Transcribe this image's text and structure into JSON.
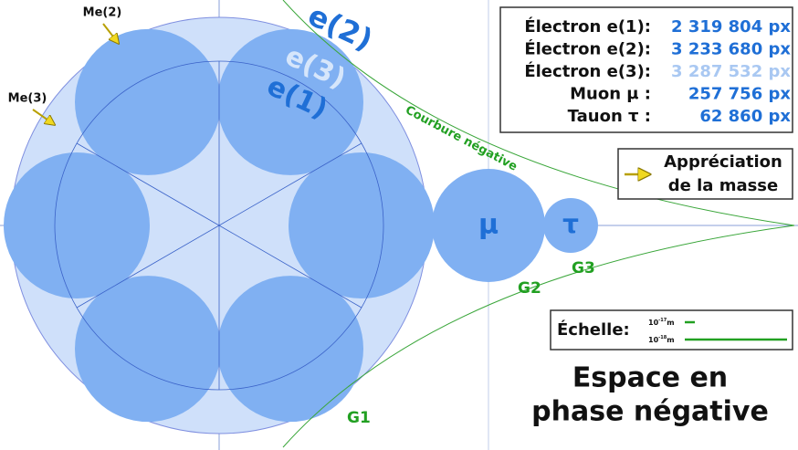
{
  "labels": {
    "me2": "Me(2)",
    "me3": "Me(3)",
    "e2": "e(2)",
    "e3": "e(3)",
    "e1": "e(1)",
    "curvature": "Courbure négative",
    "mu": "μ",
    "tau": "τ",
    "g1": "G1",
    "g2": "G2",
    "g3": "G3"
  },
  "legend": {
    "rows": [
      {
        "label": "Électron e(1):",
        "value": "2 319 804 px"
      },
      {
        "label": "Électron e(2):",
        "value": "3 233 680 px"
      },
      {
        "label": "Électron e(3):",
        "value": "3 287 532 px"
      },
      {
        "label": "Muon μ :",
        "value": "257 756 px"
      },
      {
        "label": "Tauon τ :",
        "value": "62 860 px"
      }
    ]
  },
  "mass_note": {
    "line1": "Appréciation",
    "line2": "de la masse"
  },
  "scale": {
    "title": "Échelle:",
    "small": {
      "base": "10",
      "exp": "-17",
      "unit": "m"
    },
    "large": {
      "base": "10",
      "exp": "-18",
      "unit": "m"
    }
  },
  "caption": {
    "line1": "Espace en",
    "line2": "phase négative"
  }
}
